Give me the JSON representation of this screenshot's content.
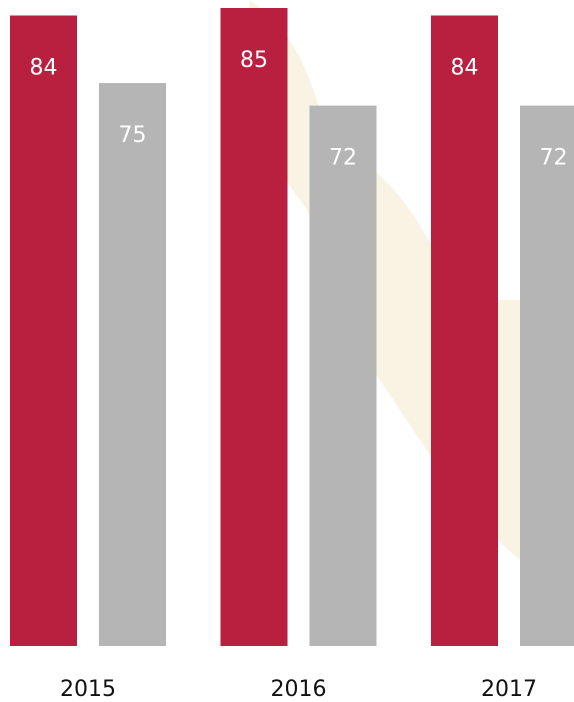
{
  "chart_data": {
    "type": "bar",
    "categories": [
      "2015",
      "2016",
      "2017"
    ],
    "series": [
      {
        "color": "#b91f3e",
        "values": [
          84,
          85,
          84
        ]
      },
      {
        "color": "#b5b5b6",
        "values": [
          75,
          72,
          72
        ]
      }
    ]
  }
}
